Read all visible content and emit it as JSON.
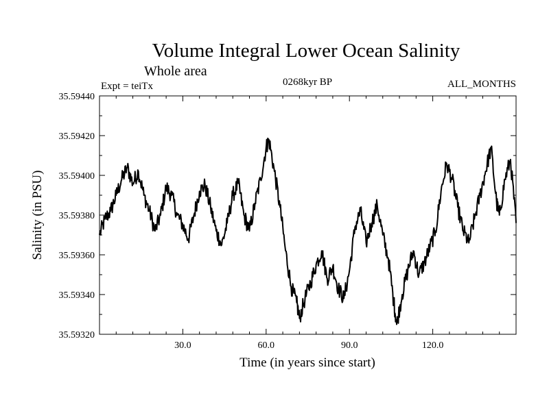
{
  "chart_data": {
    "type": "line",
    "title": "Volume Integral Lower Ocean Salinity",
    "subtitle": "Whole area",
    "experiment": "Expt = teiTx",
    "period": "0268kyr BP",
    "months": "ALL_MONTHS",
    "xlabel": "Time (in years since start)",
    "ylabel": "Salinity (in PSU)",
    "xlim": [
      0,
      150
    ],
    "ylim": [
      35.5932,
      35.5944
    ],
    "x_ticks": [
      {
        "value": 30,
        "label": "30.0"
      },
      {
        "value": 60,
        "label": "60.0"
      },
      {
        "value": 90,
        "label": "90.0"
      },
      {
        "value": 120,
        "label": "120.0"
      }
    ],
    "y_ticks": [
      {
        "value": 35.5932,
        "label": "35.59320"
      },
      {
        "value": 35.5934,
        "label": "35.59340"
      },
      {
        "value": 35.5936,
        "label": "35.59360"
      },
      {
        "value": 35.5938,
        "label": "35.59380"
      },
      {
        "value": 35.594,
        "label": "35.59400"
      },
      {
        "value": 35.5942,
        "label": "35.59420"
      },
      {
        "value": 35.5944,
        "label": "35.59440"
      }
    ],
    "series": [
      {
        "name": "Salinity",
        "x": [
          0,
          2,
          4,
          6,
          8,
          10,
          12,
          14,
          16,
          18,
          20,
          22,
          24,
          26,
          28,
          30,
          32,
          34,
          36,
          38,
          40,
          42,
          44,
          46,
          48,
          50,
          52,
          54,
          56,
          58,
          60,
          61,
          63,
          65,
          67,
          69,
          71,
          72,
          74,
          76,
          78,
          80,
          82,
          84,
          86,
          88,
          90,
          92,
          94,
          96,
          98,
          100,
          102,
          104,
          106,
          107,
          109,
          111,
          113,
          115,
          117,
          119,
          121,
          123,
          125,
          127,
          129,
          131,
          133,
          135,
          137,
          139,
          141,
          143,
          144,
          146,
          148,
          150
        ],
        "values": [
          35.5937,
          35.59378,
          35.59382,
          35.5939,
          35.59398,
          35.59404,
          35.59396,
          35.59402,
          35.5939,
          35.59382,
          35.59372,
          35.5938,
          35.59394,
          35.5939,
          35.5938,
          35.59375,
          35.59368,
          35.5938,
          35.59392,
          35.59395,
          35.59384,
          35.59372,
          35.59365,
          35.59376,
          35.5939,
          35.59396,
          35.5938,
          35.59372,
          35.59386,
          35.59398,
          35.59414,
          35.59418,
          35.59402,
          35.59384,
          35.59362,
          35.59344,
          35.59336,
          35.59328,
          35.59338,
          35.59346,
          35.59355,
          35.59362,
          35.59348,
          35.59354,
          35.59343,
          35.59338,
          35.59352,
          35.59374,
          35.59382,
          35.59366,
          35.59376,
          35.59385,
          35.5937,
          35.59358,
          35.59336,
          35.59325,
          35.5934,
          35.59352,
          35.59362,
          35.5935,
          35.59356,
          35.59364,
          35.59372,
          35.59392,
          35.59406,
          35.59398,
          35.59384,
          35.59372,
          35.59366,
          35.59378,
          35.5939,
          35.59402,
          35.59414,
          35.59386,
          35.5938,
          35.59398,
          35.59408,
          35.59376
        ]
      }
    ]
  }
}
